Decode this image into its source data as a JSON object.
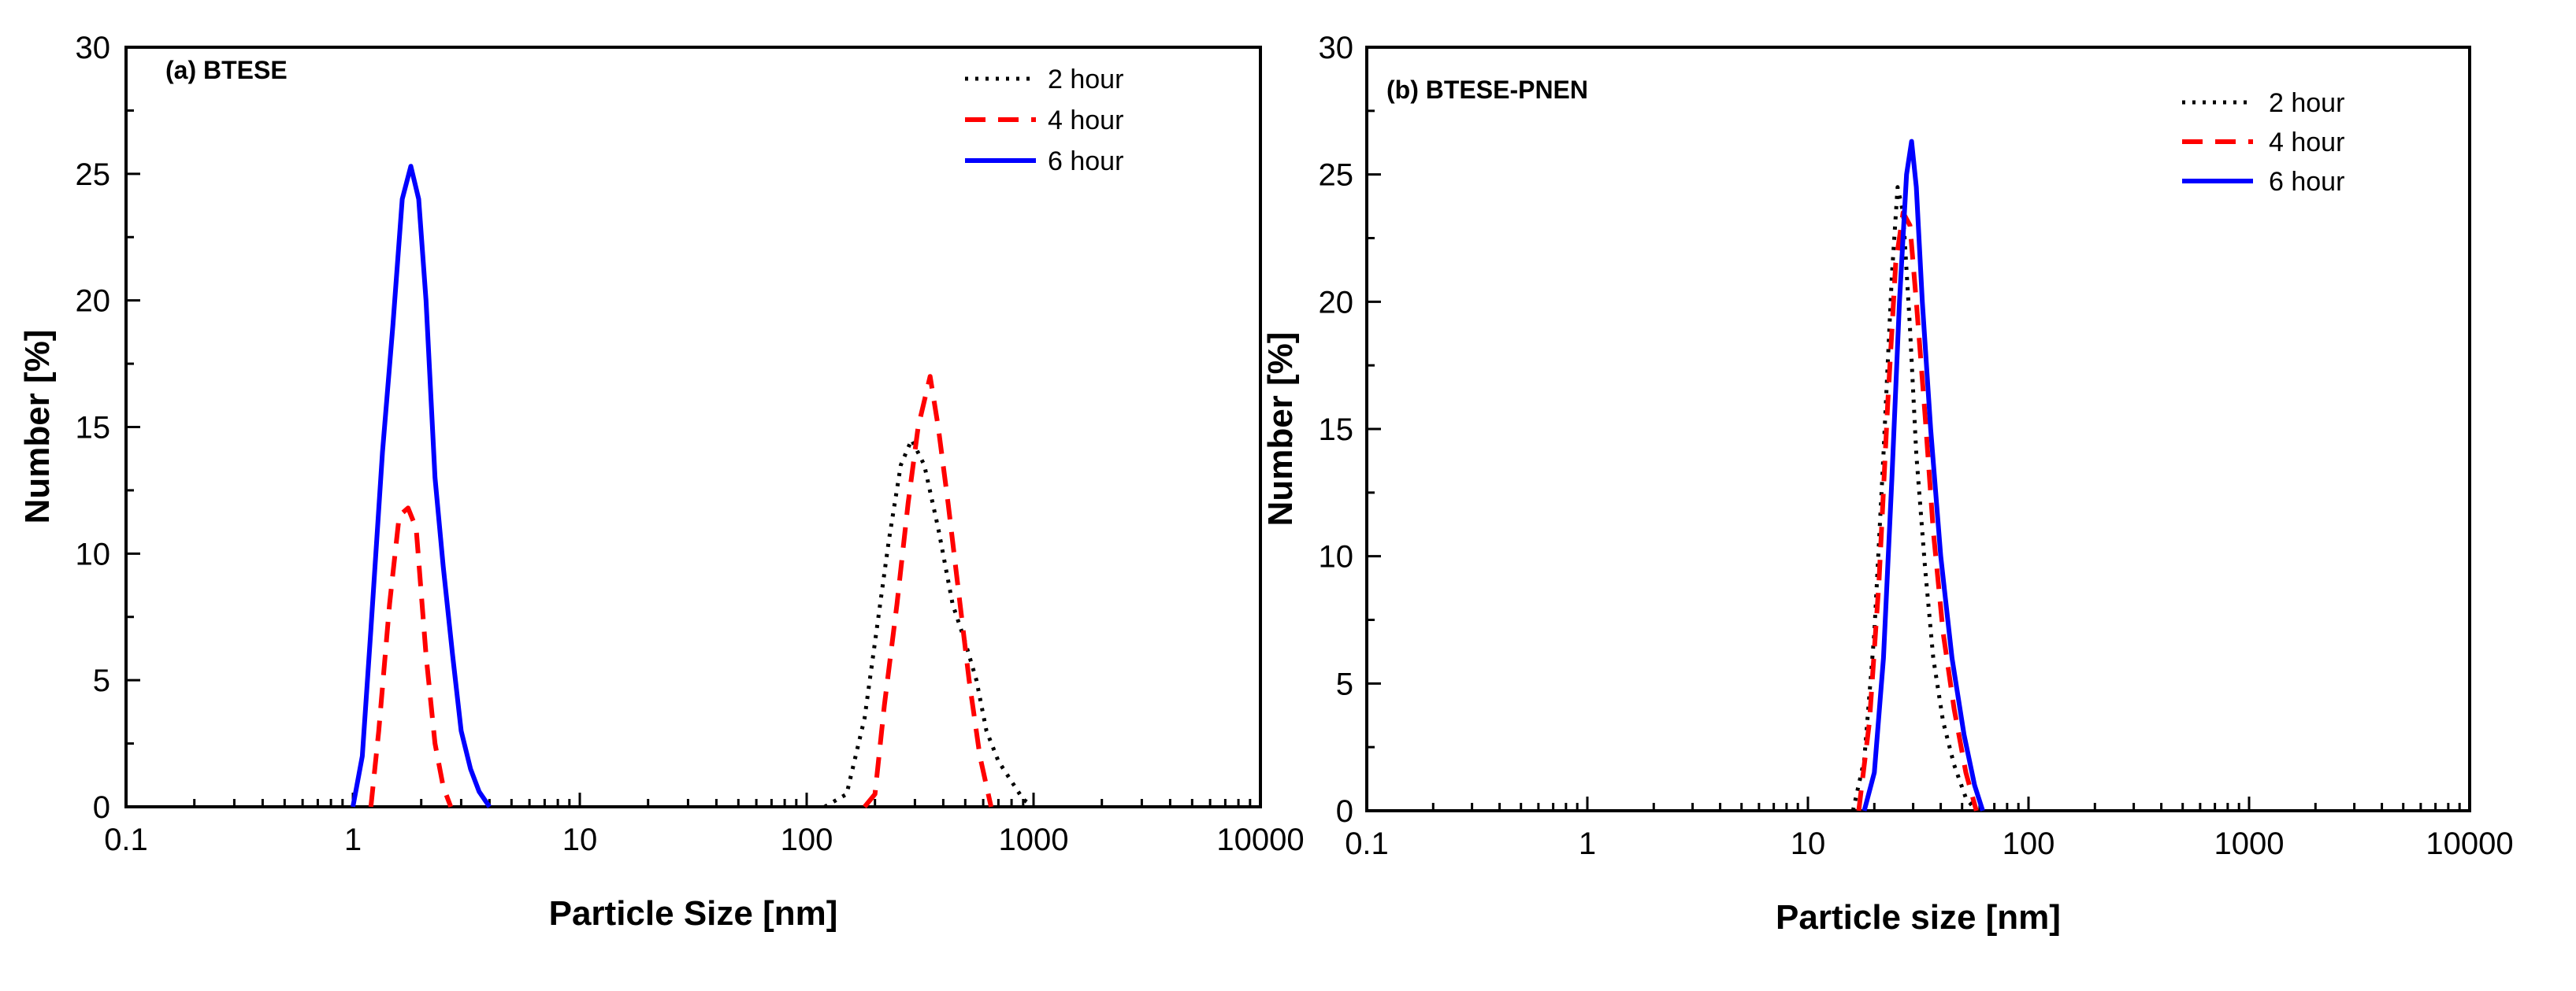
{
  "colors": {
    "series_2h": "#000000",
    "series_4h": "#ff0000",
    "series_6h": "#0000ff"
  },
  "chart_data": [
    {
      "type": "line",
      "panel_label": "(a) BTESE",
      "xlabel": "Particle Size [nm]",
      "ylabel": "Number [%]",
      "xscale": "log",
      "xlim": [
        0.1,
        10000
      ],
      "ylim": [
        0,
        30
      ],
      "xticks": [
        0.1,
        1,
        10,
        100,
        1000,
        10000
      ],
      "xtick_labels": [
        "0.1",
        "1",
        "10",
        "100",
        "1000",
        "10000"
      ],
      "yticks": [
        0,
        5,
        10,
        15,
        20,
        25,
        30
      ],
      "ytick_labels": [
        "0",
        "5",
        "10",
        "15",
        "20",
        "25",
        "30"
      ],
      "legend_position": "top-right",
      "series": [
        {
          "name": "2 hour",
          "style": "dotted",
          "x": [
            120,
            150,
            180,
            200,
            230,
            260,
            290,
            330,
            380,
            440,
            500,
            560,
            620,
            700,
            800,
            900,
            1000
          ],
          "y": [
            0,
            0.5,
            3.5,
            6.5,
            10.5,
            13.5,
            14.5,
            13.5,
            11,
            8,
            6.5,
            5,
            3,
            1.8,
            1,
            0.3,
            0
          ]
        },
        {
          "name": "4 hour",
          "style": "dashed",
          "x": [
            1.2,
            1.3,
            1.45,
            1.6,
            1.75,
            1.9,
            2.1,
            2.3,
            2.5,
            2.7,
            180,
            200,
            220,
            250,
            280,
            310,
            350,
            380,
            420,
            460,
            520,
            580,
            650
          ],
          "y": [
            0,
            3,
            8,
            11.5,
            11.8,
            11,
            6,
            2.5,
            0.8,
            0,
            0,
            0.5,
            4,
            8,
            12,
            15,
            17,
            15,
            12,
            9,
            5,
            2,
            0
          ]
        },
        {
          "name": "6 hour",
          "style": "solid",
          "x": [
            1.0,
            1.1,
            1.2,
            1.35,
            1.5,
            1.65,
            1.8,
            1.95,
            2.1,
            2.3,
            2.5,
            2.75,
            3.0,
            3.3,
            3.6,
            4.0
          ],
          "y": [
            0,
            2,
            7,
            14,
            19,
            24,
            25.3,
            24,
            20,
            13,
            9.5,
            6,
            3,
            1.5,
            0.6,
            0
          ]
        }
      ]
    },
    {
      "type": "line",
      "panel_label": "(b) BTESE-PNEN",
      "xlabel": "Particle size [nm]",
      "ylabel": "Number [%]",
      "xscale": "log",
      "xlim": [
        0.1,
        10000
      ],
      "ylim": [
        0,
        30
      ],
      "xticks": [
        0.1,
        1,
        10,
        100,
        1000,
        10000
      ],
      "xtick_labels": [
        "0.1",
        "1",
        "10",
        "100",
        "1000",
        "10000"
      ],
      "yticks": [
        0,
        5,
        10,
        15,
        20,
        25,
        30
      ],
      "ytick_labels": [
        "0",
        "5",
        "10",
        "15",
        "20",
        "25",
        "30"
      ],
      "legend_position": "top-right",
      "series": [
        {
          "name": "2 hour",
          "style": "dotted",
          "x": [
            16,
            18,
            20,
            22,
            24,
            25.5,
            27,
            29,
            31,
            34,
            37,
            41,
            46,
            52,
            58
          ],
          "y": [
            0,
            2,
            7,
            14,
            21,
            24.5,
            23.5,
            19,
            14,
            9.5,
            6,
            3.5,
            1.8,
            0.5,
            0
          ]
        },
        {
          "name": "4 hour",
          "style": "dashed",
          "x": [
            17,
            19,
            21,
            23,
            25,
            27,
            29,
            31,
            34,
            37,
            41,
            46,
            52,
            58
          ],
          "y": [
            0,
            3.5,
            9,
            16,
            21.5,
            23.5,
            23,
            20,
            15.5,
            11,
            7,
            4,
            1.5,
            0
          ]
        },
        {
          "name": "6 hour",
          "style": "solid",
          "x": [
            18,
            20,
            22,
            24,
            26,
            28,
            29.5,
            31,
            33,
            36,
            40,
            45,
            51,
            57,
            62
          ],
          "y": [
            0,
            1.5,
            6,
            13,
            20,
            25,
            26.3,
            24.5,
            20,
            15,
            10,
            6,
            3,
            1,
            0
          ]
        }
      ]
    }
  ]
}
